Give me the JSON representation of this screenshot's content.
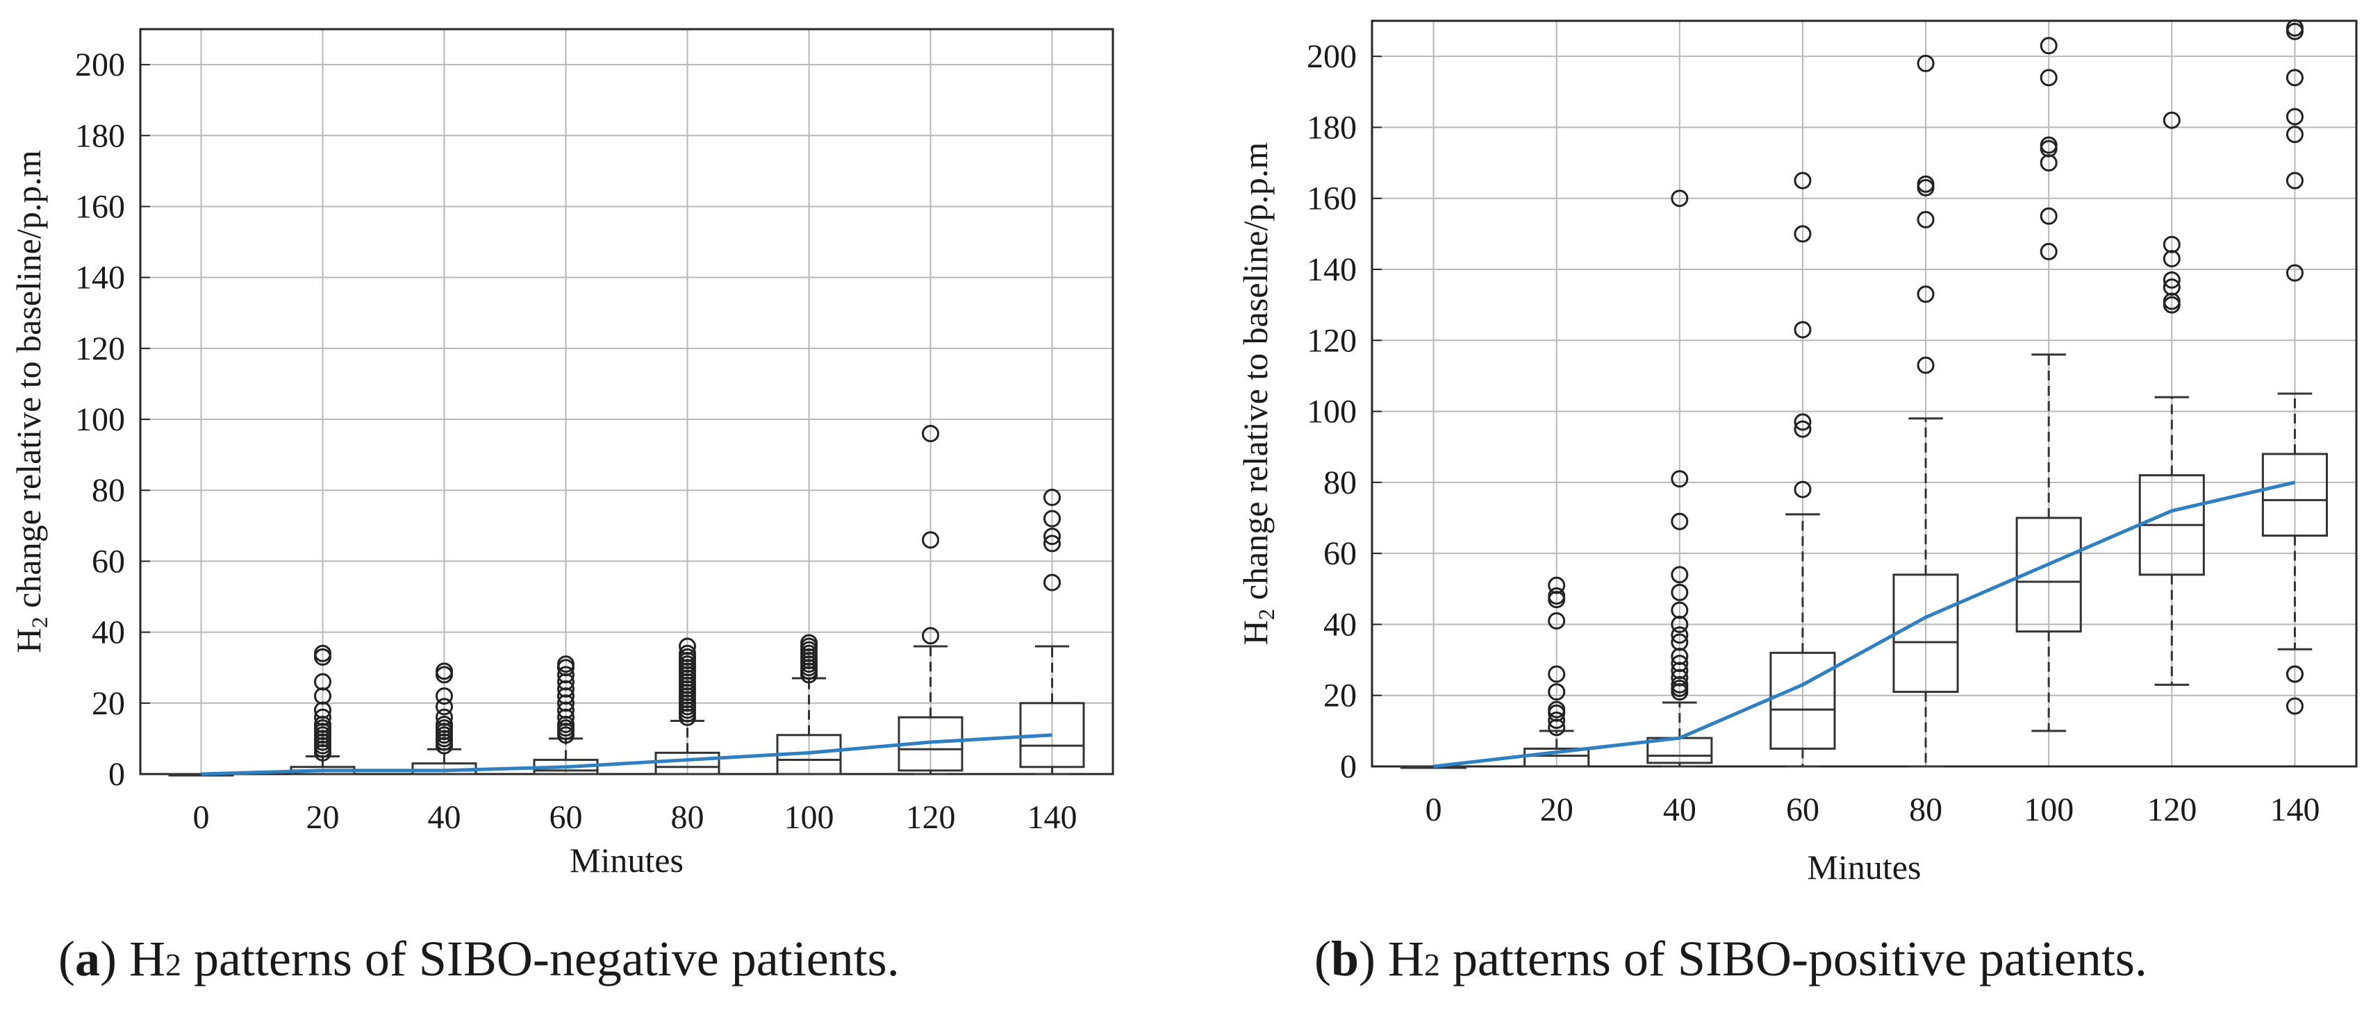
{
  "chart_data": [
    {
      "type": "box",
      "panel": "a",
      "xlabel": "Minutes",
      "ylabel": {
        "prefix": "H",
        "subscript": "2",
        "rest": " change relative to baseline/p.p.m"
      },
      "ylim": [
        0,
        210
      ],
      "yticks": [
        0,
        20,
        40,
        60,
        80,
        100,
        120,
        140,
        160,
        180,
        200
      ],
      "categories": [
        "0",
        "20",
        "40",
        "60",
        "80",
        "100",
        "120",
        "140"
      ],
      "grid": true,
      "boxes": [
        {
          "x": "0",
          "q1": 0,
          "median": 0,
          "q3": 0,
          "whisker_low": 0,
          "whisker_high": 0,
          "outliers": []
        },
        {
          "x": "20",
          "q1": 0,
          "median": 1,
          "q3": 2,
          "whisker_low": 0,
          "whisker_high": 5,
          "outliers": [
            6,
            7,
            8,
            9,
            10,
            11,
            12,
            13,
            14,
            16,
            18,
            22,
            26,
            33,
            34
          ]
        },
        {
          "x": "40",
          "q1": 0,
          "median": 1,
          "q3": 3,
          "whisker_low": 0,
          "whisker_high": 7,
          "outliers": [
            8,
            9,
            10,
            11,
            12,
            13,
            14,
            16,
            19,
            22,
            28,
            29
          ]
        },
        {
          "x": "60",
          "q1": 0,
          "median": 1,
          "q3": 4,
          "whisker_low": 0,
          "whisker_high": 10,
          "outliers": [
            11,
            12,
            13,
            14,
            16,
            18,
            20,
            22,
            24,
            26,
            28,
            30,
            31
          ]
        },
        {
          "x": "80",
          "q1": 0,
          "median": 2,
          "q3": 6,
          "whisker_low": 0,
          "whisker_high": 15,
          "outliers": [
            16,
            17,
            18,
            19,
            20,
            21,
            22,
            23,
            24,
            25,
            26,
            27,
            28,
            29,
            30,
            31,
            32,
            33,
            34,
            36
          ]
        },
        {
          "x": "100",
          "q1": 0,
          "median": 4,
          "q3": 11,
          "whisker_low": 0,
          "whisker_high": 27,
          "outliers": [
            28,
            29,
            30,
            31,
            32,
            33,
            34,
            35,
            36,
            37
          ]
        },
        {
          "x": "120",
          "q1": 1,
          "median": 7,
          "q3": 16,
          "whisker_low": 0,
          "whisker_high": 36,
          "outliers": [
            39,
            66,
            96
          ]
        },
        {
          "x": "140",
          "q1": 2,
          "median": 8,
          "q3": 20,
          "whisker_low": 0,
          "whisker_high": 36,
          "outliers": [
            54,
            65,
            67,
            72,
            78
          ]
        }
      ],
      "mean_line": {
        "name": "mean",
        "values": [
          0,
          1,
          1,
          2,
          4,
          6,
          9,
          11
        ]
      }
    },
    {
      "type": "box",
      "panel": "b",
      "xlabel": "Minutes",
      "ylabel": {
        "prefix": "H",
        "subscript": "2",
        "rest": " change relative to baseline/p.p.m"
      },
      "ylim": [
        0,
        210
      ],
      "yticks": [
        0,
        20,
        40,
        60,
        80,
        100,
        120,
        140,
        160,
        180,
        200
      ],
      "categories": [
        "0",
        "20",
        "40",
        "60",
        "80",
        "100",
        "120",
        "140"
      ],
      "grid": true,
      "boxes": [
        {
          "x": "0",
          "q1": 0,
          "median": 0,
          "q3": 0,
          "whisker_low": 0,
          "whisker_high": 0,
          "outliers": []
        },
        {
          "x": "20",
          "q1": 0,
          "median": 3,
          "q3": 5,
          "whisker_low": 0,
          "whisker_high": 10,
          "outliers": [
            11,
            13,
            15,
            16,
            21,
            26,
            41,
            47,
            48,
            51
          ]
        },
        {
          "x": "40",
          "q1": 1,
          "median": 3,
          "q3": 8,
          "whisker_low": 0,
          "whisker_high": 18,
          "outliers": [
            21,
            22,
            23,
            25,
            27,
            29,
            31,
            35,
            37,
            40,
            44,
            49,
            54,
            69,
            81,
            160
          ]
        },
        {
          "x": "60",
          "q1": 5,
          "median": 16,
          "q3": 32,
          "whisker_low": 0,
          "whisker_high": 71,
          "outliers": [
            78,
            95,
            97,
            123,
            150,
            165
          ]
        },
        {
          "x": "80",
          "q1": 21,
          "median": 35,
          "q3": 54,
          "whisker_low": 0,
          "whisker_high": 98,
          "outliers": [
            113,
            133,
            154,
            163,
            164,
            198
          ]
        },
        {
          "x": "100",
          "q1": 38,
          "median": 52,
          "q3": 70,
          "whisker_low": 10,
          "whisker_high": 116,
          "outliers": [
            145,
            155,
            170,
            174,
            175,
            194,
            203
          ]
        },
        {
          "x": "120",
          "q1": 54,
          "median": 68,
          "q3": 82,
          "whisker_low": 23,
          "whisker_high": 104,
          "outliers": [
            130,
            131,
            135,
            137,
            143,
            147,
            182
          ]
        },
        {
          "x": "140",
          "q1": 65,
          "median": 75,
          "q3": 88,
          "whisker_low": 33,
          "whisker_high": 105,
          "outliers": [
            17,
            26,
            26,
            139,
            165,
            178,
            183,
            194,
            207,
            208
          ]
        }
      ],
      "mean_line": {
        "name": "mean",
        "values": [
          0,
          4,
          8,
          23,
          42,
          57,
          72,
          80
        ]
      }
    }
  ],
  "captions": [
    {
      "label": "a",
      "prefix": " H",
      "subscript": "2",
      "rest": " patterns of SIBO-negative patients."
    },
    {
      "label": "b",
      "prefix": " H",
      "subscript": "2",
      "rest": " patterns of SIBO-positive patients."
    }
  ],
  "colors": {
    "mean_line": "#2f7fc1",
    "box": "#333333",
    "grid": "#b8b8b8",
    "text": "#1a1a1a"
  }
}
